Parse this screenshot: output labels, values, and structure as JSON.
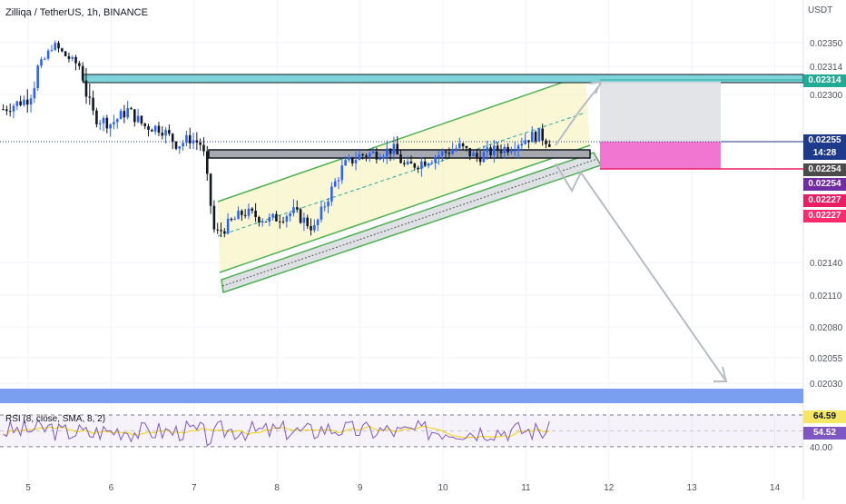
{
  "header": {
    "title": "Zilliqa / TetherUS, 1h, BINANCE",
    "currency": "USDT"
  },
  "rsi": {
    "label": "RSI (8, close, SMA, 8, 2)"
  },
  "price_tags": [
    {
      "text": "0.02314",
      "bg": "#22ab94",
      "fg": "#ffffff"
    },
    {
      "text": "0.02255",
      "bg": "#1e3a8a",
      "fg": "#ffffff"
    },
    {
      "text": "14:28",
      "bg": "#1e3a8a",
      "fg": "#ffffff"
    },
    {
      "text": "0.02254",
      "bg": "#4b4b4b",
      "fg": "#ffffff"
    },
    {
      "text": "0.02254",
      "bg": "#6f2ca3",
      "fg": "#ffffff"
    },
    {
      "text": "0.02227",
      "bg": "#e91e63",
      "fg": "#ffffff"
    },
    {
      "text": "0.02227",
      "bg": "#ff2a6d",
      "fg": "#ffffff"
    }
  ],
  "rsi_tags": [
    {
      "text": "64.59",
      "bg": "#f5e663",
      "fg": "#131722"
    },
    {
      "text": "54.52",
      "bg": "#7e57c2",
      "fg": "#ffffff"
    }
  ],
  "colors": {
    "up": "#2962ff",
    "down": "#131722",
    "channel": "#4caf50",
    "rsi": "#7e57c2",
    "rsi_ma": "#f5d000"
  },
  "chart_data": {
    "type": "candlestick",
    "symbol": "Zilliqa / TetherUS",
    "interval": "1h",
    "exchange": "BINANCE",
    "y_ticks": [
      "0.02350",
      "0.02314",
      "0.02300",
      "0.02140",
      "0.02110",
      "0.02080",
      "0.02055",
      "0.02030"
    ],
    "x_ticks": [
      "5",
      "6",
      "7",
      "8",
      "9",
      "10",
      "11",
      "12",
      "13",
      "14"
    ],
    "ylim": [
      0.0202,
      0.0237
    ],
    "xlim": [
      4.65,
      14.3
    ],
    "close_series": [
      {
        "x": 4.7,
        "y": 0.02286
      },
      {
        "x": 5.0,
        "y": 0.02296
      },
      {
        "x": 5.2,
        "y": 0.02325
      },
      {
        "x": 5.3,
        "y": 0.02348
      },
      {
        "x": 5.45,
        "y": 0.0233
      },
      {
        "x": 5.65,
        "y": 0.02312
      },
      {
        "x": 5.8,
        "y": 0.02278
      },
      {
        "x": 6.0,
        "y": 0.02272
      },
      {
        "x": 6.2,
        "y": 0.02285
      },
      {
        "x": 6.4,
        "y": 0.0227
      },
      {
        "x": 6.6,
        "y": 0.02268
      },
      {
        "x": 6.8,
        "y": 0.02252
      },
      {
        "x": 6.95,
        "y": 0.02258
      },
      {
        "x": 7.1,
        "y": 0.02252
      },
      {
        "x": 7.25,
        "y": 0.02166
      },
      {
        "x": 7.35,
        "y": 0.02172
      },
      {
        "x": 7.6,
        "y": 0.02188
      },
      {
        "x": 7.9,
        "y": 0.0218
      },
      {
        "x": 8.2,
        "y": 0.02188
      },
      {
        "x": 8.45,
        "y": 0.02172
      },
      {
        "x": 8.6,
        "y": 0.022
      },
      {
        "x": 8.8,
        "y": 0.02232
      },
      {
        "x": 9.0,
        "y": 0.02242
      },
      {
        "x": 9.2,
        "y": 0.02244
      },
      {
        "x": 9.4,
        "y": 0.02248
      },
      {
        "x": 9.55,
        "y": 0.0223
      },
      {
        "x": 9.75,
        "y": 0.02236
      },
      {
        "x": 10.0,
        "y": 0.02244
      },
      {
        "x": 10.2,
        "y": 0.0225
      },
      {
        "x": 10.4,
        "y": 0.0224
      },
      {
        "x": 10.6,
        "y": 0.02246
      },
      {
        "x": 10.8,
        "y": 0.0225
      },
      {
        "x": 11.0,
        "y": 0.02258
      },
      {
        "x": 11.15,
        "y": 0.02262
      },
      {
        "x": 11.3,
        "y": 0.02254
      }
    ],
    "levels": [
      {
        "name": "resistance",
        "y": 0.02314
      },
      {
        "name": "current",
        "y": 0.02255
      },
      {
        "name": "stop",
        "y": 0.02227
      }
    ],
    "rsi": {
      "label": "RSI (8, close, SMA, 8, 2)",
      "value": 54.52,
      "ma_value": 64.59,
      "levels": [
        80.0,
        40.0
      ],
      "ylim": [
        10,
        95
      ]
    }
  }
}
